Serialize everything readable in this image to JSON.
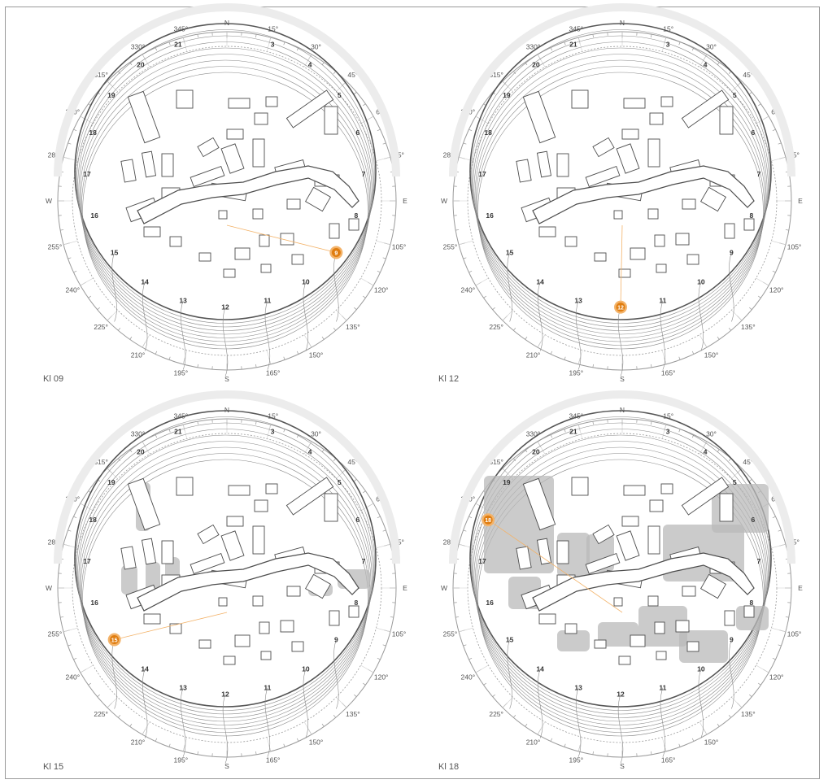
{
  "colors": {
    "line": "#555555",
    "light_line": "#9a9a9a",
    "building": "#4d4d4d",
    "shadow": "#b9b9b9",
    "sun": "#e07d10",
    "sun_halo": "#f3b36a",
    "text": "#555555"
  },
  "compass": {
    "bearings": [
      "N",
      "15°",
      "30°",
      "45°",
      "60°",
      "75°",
      "E",
      "105°",
      "120°",
      "135°",
      "150°",
      "165°",
      "S",
      "195°",
      "210°",
      "225°",
      "240°",
      "255°",
      "W",
      "285°",
      "300°",
      "315°",
      "330°",
      "345°"
    ]
  },
  "panels": [
    {
      "label": "Kl 09",
      "hour_marks": [
        "3",
        "4",
        "5",
        "6",
        "7",
        "8",
        "9",
        "10",
        "11",
        "12",
        "13",
        "14",
        "15",
        "16",
        "17",
        "18",
        "19",
        "20",
        "21"
      ],
      "sun_label": "9",
      "sun_hour": 9,
      "shadow_level": 0
    },
    {
      "label": "Kl 12",
      "hour_marks": [
        "3",
        "4",
        "5",
        "6",
        "7",
        "8",
        "9",
        "10",
        "11",
        "12",
        "13",
        "14",
        "15",
        "16",
        "17",
        "18",
        "19",
        "20",
        "21"
      ],
      "sun_label": "12",
      "sun_hour": 12,
      "shadow_level": 0
    },
    {
      "label": "Kl 15",
      "hour_marks": [
        "3",
        "4",
        "5",
        "6",
        "7",
        "8",
        "9",
        "10",
        "11",
        "12",
        "13",
        "14",
        "15",
        "16",
        "17",
        "18",
        "19",
        "20",
        "21"
      ],
      "sun_label": "15",
      "sun_hour": 15,
      "shadow_level": 1
    },
    {
      "label": "Kl 18",
      "hour_marks": [
        "3",
        "4",
        "5",
        "6",
        "7",
        "8",
        "9",
        "10",
        "11",
        "12",
        "13",
        "14",
        "15",
        "16",
        "17",
        "18",
        "19",
        "20",
        "21"
      ],
      "sun_label": "18",
      "sun_hour": 18,
      "shadow_level": 2
    }
  ]
}
